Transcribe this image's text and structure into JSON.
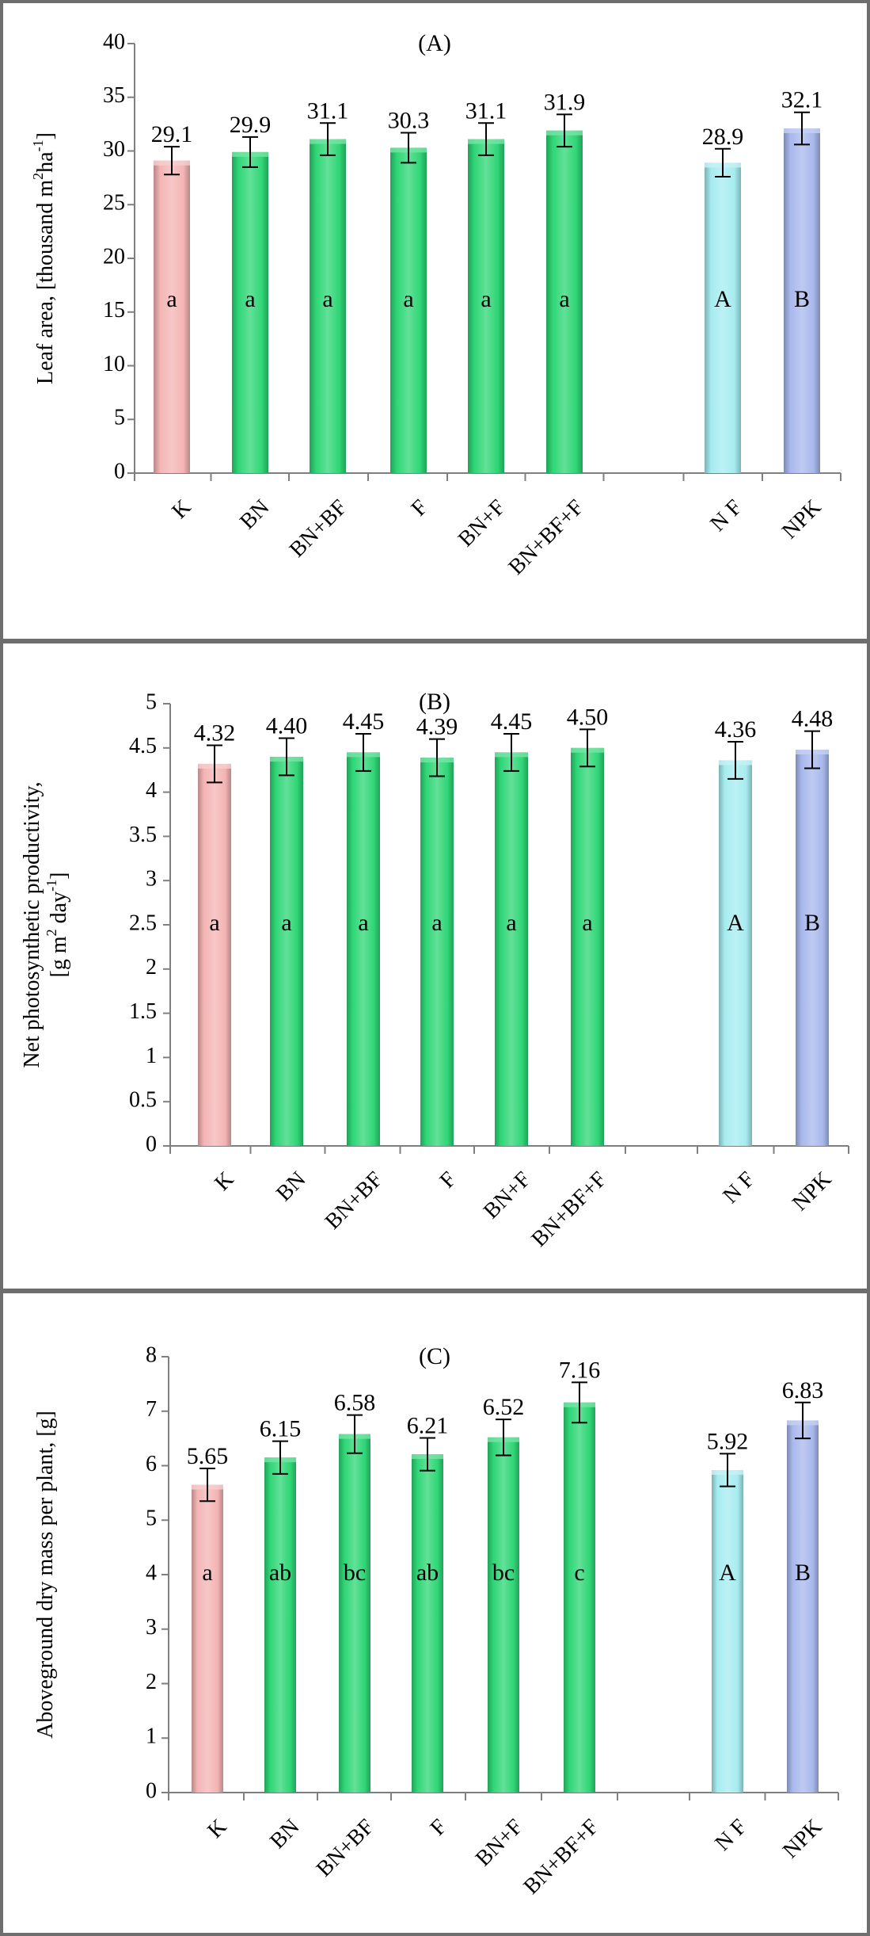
{
  "chart_data": [
    {
      "type": "bar",
      "title": "(A)",
      "ylabel": "Leaf area, [thousand m² ha⁻¹]",
      "ylabel_lines": [
        [
          {
            "t": "Leaf area, [thousand m"
          },
          {
            "t": "2",
            "sup": true
          },
          {
            "t": "ha"
          },
          {
            "t": "-1",
            "sup": true
          },
          {
            "t": "]"
          }
        ]
      ],
      "ylim": [
        0,
        40
      ],
      "yticks": [
        "0",
        "5",
        "10",
        "15",
        "20",
        "25",
        "30",
        "35",
        "40"
      ],
      "ytick_values": [
        0,
        5,
        10,
        15,
        20,
        25,
        30,
        35,
        40
      ],
      "categories": [
        "K",
        "BN",
        "BN+BF",
        "F",
        "BN+F",
        "BN+BF+F",
        "N F",
        "NPK"
      ],
      "values": [
        29.1,
        29.9,
        31.1,
        30.3,
        31.1,
        31.9,
        28.9,
        32.1
      ],
      "value_labels": [
        "29.1",
        "29.9",
        "31.1",
        "30.3",
        "31.1",
        "31.9",
        "28.9",
        "32.1"
      ],
      "errors": [
        1.3,
        1.4,
        1.5,
        1.4,
        1.5,
        1.5,
        1.3,
        1.5
      ],
      "letters": [
        "a",
        "a",
        "a",
        "a",
        "a",
        "a",
        "A",
        "B"
      ],
      "letter_y": 16,
      "grid": false
    },
    {
      "type": "bar",
      "title": "(B)",
      "ylabel": "Net photosynthetic productivity, [g m² day⁻¹]",
      "ylabel_lines": [
        [
          {
            "t": "Net photosynthetic productivity,"
          }
        ],
        [
          {
            "t": "[g m"
          },
          {
            "t": "2",
            "sup": true
          },
          {
            "t": " day"
          },
          {
            "t": "-1",
            "sup": true
          },
          {
            "t": "]"
          }
        ]
      ],
      "ylim": [
        0,
        5
      ],
      "yticks": [
        "0",
        "0.5",
        "1",
        "1.5",
        "2",
        "2.5",
        "3",
        "3.5",
        "4",
        "4.5",
        "5"
      ],
      "ytick_values": [
        0,
        0.5,
        1,
        1.5,
        2,
        2.5,
        3,
        3.5,
        4,
        4.5,
        5
      ],
      "categories": [
        "K",
        "BN",
        "BN+BF",
        "F",
        "BN+F",
        "BN+BF+F",
        "N F",
        "NPK"
      ],
      "values": [
        4.32,
        4.4,
        4.45,
        4.39,
        4.45,
        4.5,
        4.36,
        4.48
      ],
      "value_labels": [
        "4.32",
        "4.40",
        "4.45",
        "4.39",
        "4.45",
        "4.50",
        "4.36",
        "4.48"
      ],
      "errors": [
        0.21,
        0.21,
        0.21,
        0.21,
        0.21,
        0.21,
        0.21,
        0.21
      ],
      "letters": [
        "a",
        "a",
        "a",
        "a",
        "a",
        "a",
        "A",
        "B"
      ],
      "letter_y": 2.5,
      "grid": false
    },
    {
      "type": "bar",
      "title": "(C)",
      "ylabel": "Aboveground dry mass per plant, [g]",
      "ylabel_lines": [
        [
          {
            "t": "Aboveground dry mass per plant, [g]"
          }
        ]
      ],
      "ylim": [
        0,
        8
      ],
      "yticks": [
        "0",
        "1",
        "2",
        "3",
        "4",
        "5",
        "6",
        "7",
        "8"
      ],
      "ytick_values": [
        0,
        1,
        2,
        3,
        4,
        5,
        6,
        7,
        8
      ],
      "categories": [
        "K",
        "BN",
        "BN+BF",
        "F",
        "BN+F",
        "BN+BF+F",
        "N F",
        "NPK"
      ],
      "values": [
        5.65,
        6.15,
        6.58,
        6.21,
        6.52,
        7.16,
        5.92,
        6.83
      ],
      "value_labels": [
        "5.65",
        "6.15",
        "6.58",
        "6.21",
        "6.52",
        "7.16",
        "5.92",
        "6.83"
      ],
      "errors": [
        0.3,
        0.3,
        0.35,
        0.3,
        0.33,
        0.37,
        0.3,
        0.33
      ],
      "letters": [
        "a",
        "ab",
        "bc",
        "ab",
        "bc",
        "c",
        "A",
        "B"
      ],
      "letter_y": 4,
      "grid": false
    }
  ],
  "colors": {
    "K": "#f4b4b4",
    "BN": "#2fd676",
    "NF": "#a6ecf0",
    "NPK": "#a8b8ec",
    "frame": "#6e6e6e",
    "axis": "#7f7f7f"
  }
}
